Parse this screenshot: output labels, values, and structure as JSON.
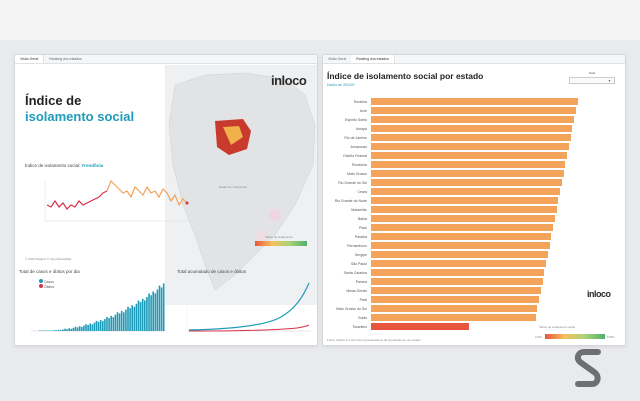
{
  "left_panel": {
    "tabs": [
      "Visão Geral",
      "Ranking dos estados"
    ],
    "logo": "inloco",
    "title_line1": "Índice de",
    "title_line2": "isolamento social",
    "subtitle": "Índice de isolamento social:",
    "subtitle_state": "#rondônia",
    "map_legend_label": "Índice de isolamento",
    "map_caption_left": "Dados de\nisolamento",
    "cases_chart_title": "Total de casos e óbitos por dia",
    "cases_legend": [
      "Casos",
      "Óbitos"
    ],
    "cumulative_chart_title": "Total acumulado de casos e óbitos",
    "footer_note": "© 2020 Mapbox © OpenStreetMap"
  },
  "right_panel": {
    "tabs": [
      "Visão Geral",
      "Ranking dos estados"
    ],
    "title": "Índice de isolamento social por estado",
    "date_label": "Dados de 29/4/20",
    "dropdown_label": "Data",
    "logo": "inloco",
    "legend_label": "Índice de isolamento social",
    "legend_min": "0.5%",
    "legend_max": "100%",
    "footnote": "Fonte: Dados In Loco não representativos da população de um estado",
    "states": [
      {
        "name": "Roraima",
        "value": 0.59
      },
      {
        "name": "Acre",
        "value": 0.585
      },
      {
        "name": "Espírito Santo",
        "value": 0.58
      },
      {
        "name": "Amapá",
        "value": 0.575
      },
      {
        "name": "Rio de Janeiro",
        "value": 0.57
      },
      {
        "name": "Amazonas",
        "value": 0.565
      },
      {
        "name": "Distrito Federal",
        "value": 0.56
      },
      {
        "name": "Rondônia",
        "value": 0.555
      },
      {
        "name": "Mato Grosso",
        "value": 0.55
      },
      {
        "name": "Rio Grande do Sul",
        "value": 0.545
      },
      {
        "name": "Ceará",
        "value": 0.54
      },
      {
        "name": "Rio Grande do Norte",
        "value": 0.535
      },
      {
        "name": "Maranhão",
        "value": 0.53
      },
      {
        "name": "Bahia",
        "value": 0.525
      },
      {
        "name": "Piauí",
        "value": 0.52
      },
      {
        "name": "Paraíba",
        "value": 0.515
      },
      {
        "name": "Pernambuco",
        "value": 0.51
      },
      {
        "name": "Sergipe",
        "value": 0.505
      },
      {
        "name": "São Paulo",
        "value": 0.5
      },
      {
        "name": "Santa Catarina",
        "value": 0.495
      },
      {
        "name": "Paraná",
        "value": 0.49
      },
      {
        "name": "Minas Gerais",
        "value": 0.485
      },
      {
        "name": "Pará",
        "value": 0.48
      },
      {
        "name": "Mato Grosso do Sul",
        "value": 0.475
      },
      {
        "name": "Goiás",
        "value": 0.47
      },
      {
        "name": "Tocantins",
        "value": 0.28
      }
    ]
  },
  "colors": {
    "accent": "#1e9bb8",
    "bar": "#f3a35a",
    "bar_low": "#e8553f",
    "cases": "#1e9bb8",
    "deaths": "#d9304a"
  }
}
